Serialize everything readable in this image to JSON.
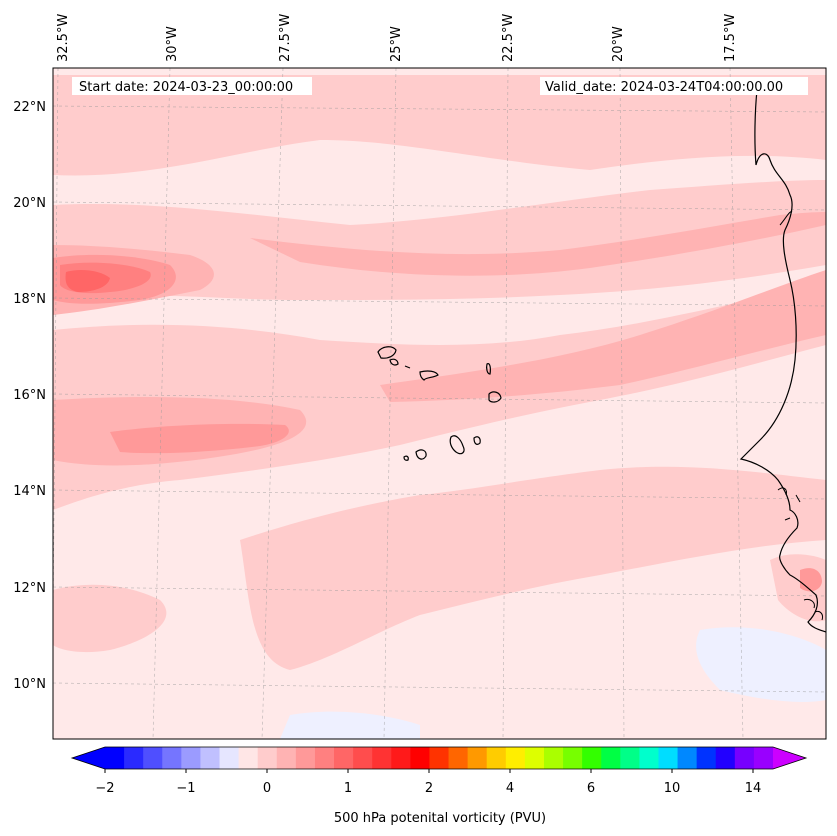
{
  "map": {
    "start_date": "Start date: 2024-03-23_00:00:00",
    "valid_date": "Valid_date: 2024-03-24T04:00:00.00",
    "lon_labels": [
      "32.5°W",
      "30°W",
      "27.5°W",
      "25°W",
      "22.5°W",
      "20°W",
      "17.5°W"
    ],
    "lat_labels": [
      "22°N",
      "20°N",
      "18°N",
      "16°N",
      "14°N",
      "12°N",
      "10°N"
    ]
  },
  "colorbar": {
    "label": "500 hPa potenital vorticity (PVU)",
    "tick_labels": [
      "−2",
      "−1",
      "0",
      "1",
      "2",
      "4",
      "6",
      "10",
      "14"
    ],
    "colors": [
      "#0000ff",
      "#2a2aff",
      "#4f4fff",
      "#7575ff",
      "#9b9bff",
      "#c0c0ff",
      "#e6e6ff",
      "#ffe6e6",
      "#ffcccc",
      "#ffb3b3",
      "#ff9999",
      "#ff8080",
      "#ff6666",
      "#ff4d4d",
      "#ff3333",
      "#ff1a1a",
      "#ff0000",
      "#ff3300",
      "#ff6600",
      "#ff9900",
      "#ffcc00",
      "#ffee00",
      "#ddff00",
      "#aaff00",
      "#77ff00",
      "#33ff00",
      "#00ff44",
      "#00ff88",
      "#00ffcc",
      "#00ddff",
      "#0088ff",
      "#0033ff",
      "#2200ff",
      "#7700ff",
      "#9900ff"
    ],
    "under_color": "#0000ff",
    "over_color": "#cc00ff"
  },
  "field_colors": {
    "bg": "#ffe9e9",
    "lvl1": "#ffcccc",
    "lvl2": "#ffb3b3",
    "lvl3": "#ff9999",
    "lvl4": "#ff8080",
    "lvl5": "#ff6666",
    "neg": "#eef0ff"
  }
}
